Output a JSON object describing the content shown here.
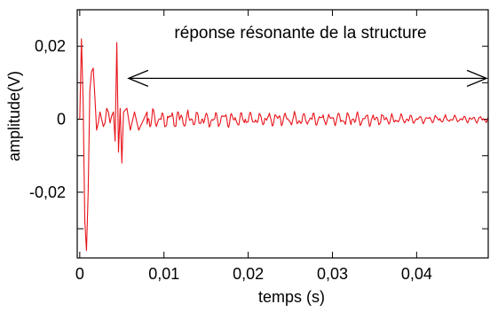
{
  "chart_data": {
    "type": "line",
    "title": "",
    "xlabel": "temps (s)",
    "ylabel": "amplitude(V)",
    "xlim": [
      -0.0003,
      0.0485
    ],
    "ylim": [
      -0.038,
      0.03
    ],
    "x_ticks": [
      {
        "value": 0,
        "label": "0"
      },
      {
        "value": 0.01,
        "label": "0,01"
      },
      {
        "value": 0.02,
        "label": "0,02"
      },
      {
        "value": 0.03,
        "label": "0,03"
      },
      {
        "value": 0.04,
        "label": "0,04"
      }
    ],
    "y_ticks": [
      {
        "value": 0.02,
        "label": "0,02"
      },
      {
        "value": 0,
        "label": "0"
      },
      {
        "value": -0.02,
        "label": "-0,02"
      }
    ],
    "y_minor_ticks": [
      0.01,
      -0.01,
      -0.03
    ],
    "grid": false,
    "annotation": {
      "text": "réponse résonante de la structure",
      "arrow_from_x": 0.0058,
      "arrow_to_x": 0.0483,
      "arrow_y": 0.0112
    },
    "series": [
      {
        "color": "#e8141b",
        "points": [
          [
            0.0,
            0.0
          ],
          [
            0.0002,
            0.022
          ],
          [
            0.0004,
            0.005
          ],
          [
            0.0006,
            -0.028
          ],
          [
            0.0008,
            -0.036
          ],
          [
            0.001,
            -0.02
          ],
          [
            0.0012,
            0.008
          ],
          [
            0.0014,
            0.013
          ],
          [
            0.0016,
            0.014
          ],
          [
            0.0018,
            0.006
          ],
          [
            0.002,
            -0.003
          ],
          [
            0.0022,
            -0.001
          ],
          [
            0.0024,
            0.002
          ],
          [
            0.0026,
            0.0
          ],
          [
            0.0028,
            -0.002
          ],
          [
            0.003,
            -0.001
          ],
          [
            0.0032,
            0.003
          ],
          [
            0.0034,
            0.002
          ],
          [
            0.0036,
            -0.001
          ],
          [
            0.0038,
            0.001
          ],
          [
            0.004,
            0.002
          ],
          [
            0.0042,
            -0.006
          ],
          [
            0.0044,
            0.021
          ],
          [
            0.0046,
            -0.009
          ],
          [
            0.0048,
            0.003
          ],
          [
            0.005,
            -0.012
          ],
          [
            0.0052,
            0.002
          ],
          [
            0.0056,
            0.003
          ],
          [
            0.006,
            -0.003
          ],
          [
            0.0065,
            0.002
          ],
          [
            0.007,
            -0.003
          ],
          [
            0.008,
            0.002
          ]
        ],
        "noise": {
          "start": 0.008,
          "end": 0.0485,
          "step": 0.00011,
          "amplitude_envelope": [
            [
              0.008,
              0.0028
            ],
            [
              0.015,
              0.0022
            ],
            [
              0.025,
              0.0018
            ],
            [
              0.035,
              0.0018
            ],
            [
              0.04,
              0.0011
            ],
            [
              0.0485,
              0.001
            ]
          ]
        }
      }
    ]
  }
}
